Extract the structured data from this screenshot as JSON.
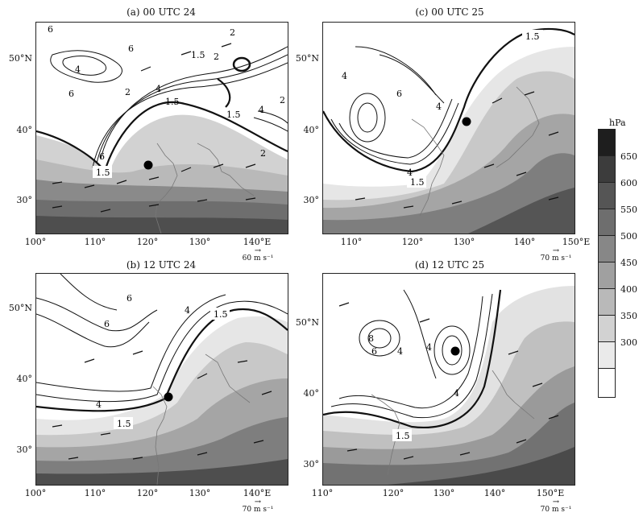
{
  "panels": [
    {
      "title": "(a) 00 UTC 24",
      "lats": [
        "50°N",
        "40°",
        "30°"
      ],
      "lons": [
        "100°",
        "110°",
        "120°",
        "130°",
        "140°E"
      ],
      "speed_ref": "60 m s⁻¹"
    },
    {
      "title": "(c) 00 UTC 25",
      "lats": [
        "50°N",
        "40°",
        "30°"
      ],
      "lons": [
        "110°",
        "120°",
        "130°",
        "140°",
        "150°E"
      ],
      "speed_ref": "70 m s⁻¹"
    },
    {
      "title": "(b) 12 UTC 24",
      "lats": [
        "50°N",
        "40°",
        "30°"
      ],
      "lons": [
        "100°",
        "110°",
        "120°",
        "130°",
        "140°E"
      ],
      "speed_ref": "70 m s⁻¹"
    },
    {
      "title": "(d) 12 UTC 25",
      "lats": [
        "50°N",
        "40°",
        "30°"
      ],
      "lons": [
        "110°",
        "120°",
        "130°",
        "140°",
        "150°E"
      ],
      "speed_ref": "70 m s⁻¹"
    }
  ],
  "contour_labels": {
    "a": [
      "6",
      "6",
      "4",
      "6",
      "2",
      "1.5",
      "2",
      "2",
      "4",
      "1.5",
      "1.5",
      "4",
      "2",
      "2",
      "6",
      "1.5"
    ],
    "c": [
      "1.5",
      "4",
      "6",
      "4",
      "4",
      "1.5"
    ],
    "b": [
      "6",
      "6",
      "4",
      "1.5",
      "4",
      "1.5"
    ],
    "d": [
      "8",
      "6",
      "4",
      "4",
      "4",
      "1.5"
    ]
  },
  "colorbar": {
    "unit": "hPa",
    "ticks": [
      "650",
      "600",
      "550",
      "500",
      "450",
      "400",
      "350",
      "300"
    ],
    "colors": [
      "#1e1e1e",
      "#3c3c3c",
      "#555555",
      "#6e6e6e",
      "#878787",
      "#a0a0a0",
      "#b9b9b9",
      "#d2d2d2",
      "#eaeaea",
      "#ffffff"
    ]
  }
}
